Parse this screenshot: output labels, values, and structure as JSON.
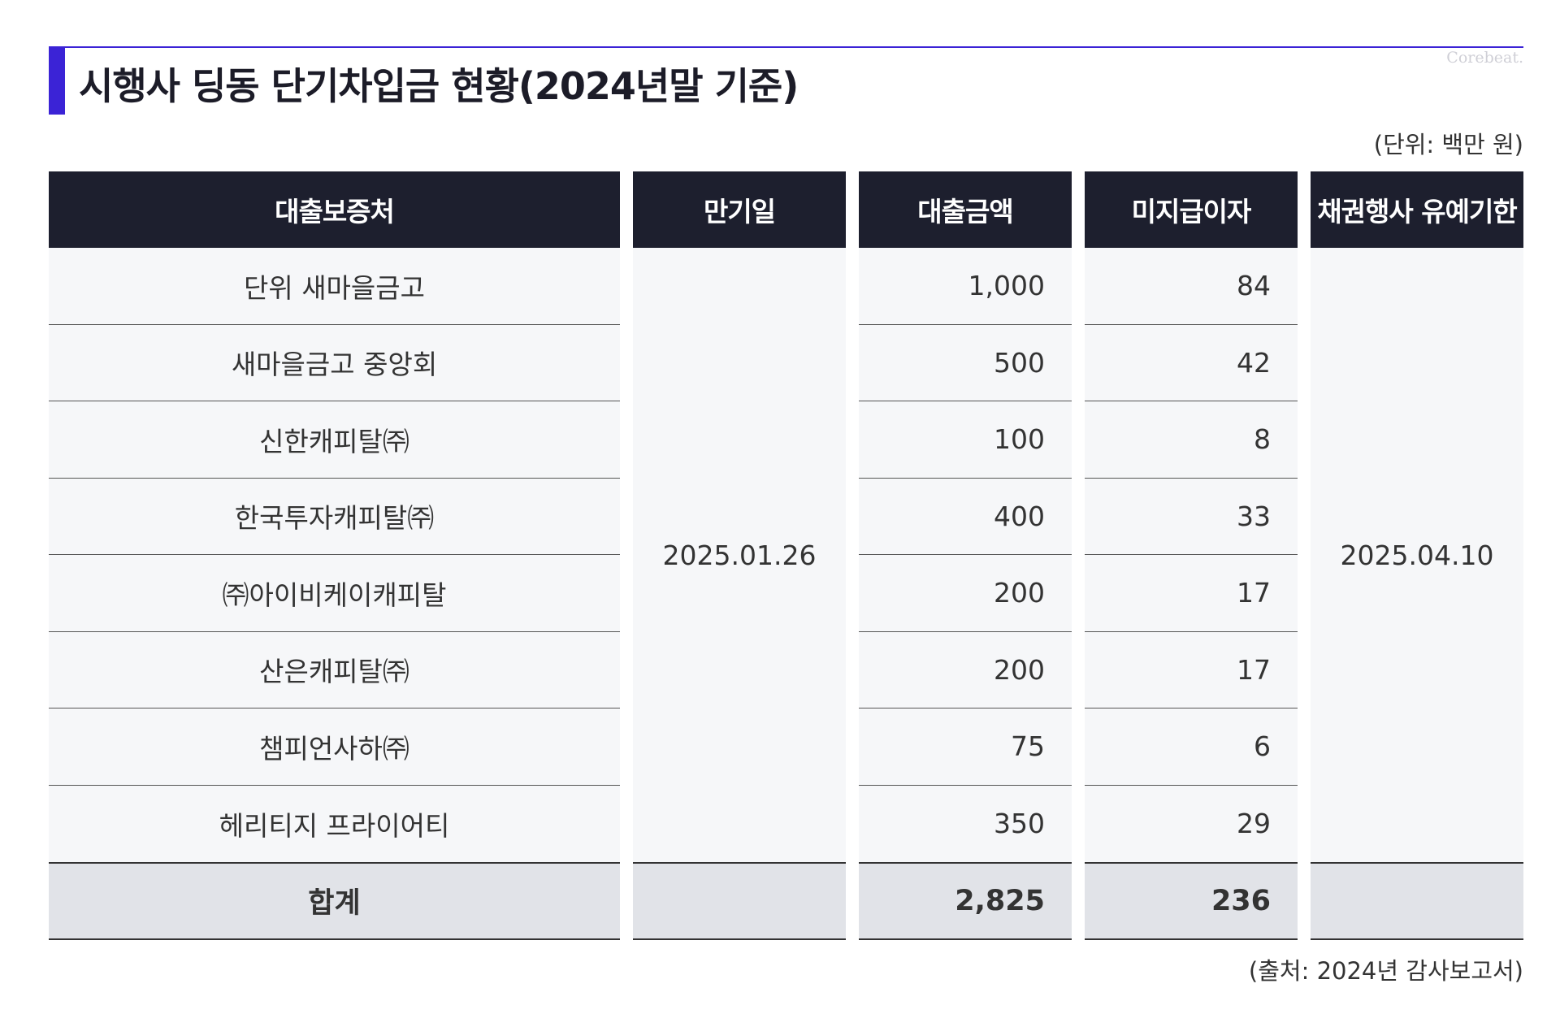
{
  "title": "시행사 딩동 단기차입금 현황(2024년말 기준)",
  "watermark": "Corebeat.",
  "unit_note": "(단위: 백만 원)",
  "source_note": "(출처: 2024년 감사보고서)",
  "accent_color": "#3b23d6",
  "header_color": "#1d1f2e",
  "headers": [
    "대출보증처",
    "만기일",
    "대출금액",
    "미지급이자",
    "채권행사 유예기한"
  ],
  "maturity_date": "2025.01.26",
  "grace_deadline": "2025.04.10",
  "rows": [
    {
      "lender": "단위 새마을금고",
      "amount": "1,000",
      "interest": "84"
    },
    {
      "lender": "새마을금고 중앙회",
      "amount": "500",
      "interest": "42"
    },
    {
      "lender": "신한캐피탈㈜",
      "amount": "100",
      "interest": "8"
    },
    {
      "lender": "한국투자캐피탈㈜",
      "amount": "400",
      "interest": "33"
    },
    {
      "lender": "㈜아이비케이캐피탈",
      "amount": "200",
      "interest": "17"
    },
    {
      "lender": "산은캐피탈㈜",
      "amount": "200",
      "interest": "17"
    },
    {
      "lender": "챔피언사하㈜",
      "amount": "75",
      "interest": "6"
    },
    {
      "lender": "헤리티지 프라이어티",
      "amount": "350",
      "interest": "29"
    }
  ],
  "total": {
    "label": "합계",
    "amount": "2,825",
    "interest": "236"
  }
}
